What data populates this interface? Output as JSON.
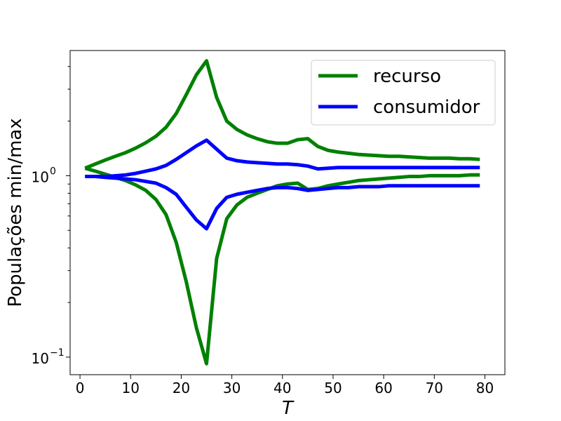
{
  "chart_data": {
    "type": "line",
    "xlabel": "T",
    "ylabel": "Populações min/max",
    "xlim": [
      -1.95,
      83.95
    ],
    "ylim": [
      0.08,
      4.9
    ],
    "yscale": "log",
    "grid": false,
    "legend_position": "top-right",
    "x_ticks": [
      0,
      10,
      20,
      30,
      40,
      50,
      60,
      70,
      80
    ],
    "x_tick_labels": [
      "0",
      "10",
      "20",
      "30",
      "40",
      "50",
      "60",
      "70",
      "80"
    ],
    "y_ticks": [
      {
        "value": 1,
        "base": "10",
        "exp": "0"
      },
      {
        "value": 0.1,
        "base": "10",
        "exp": "−1"
      }
    ],
    "minor_y_ticks": [
      0.2,
      0.3,
      0.4,
      0.5,
      0.6,
      0.7,
      0.8,
      0.9,
      2,
      3,
      4
    ],
    "x": [
      1,
      3,
      5,
      7,
      9,
      11,
      13,
      15,
      17,
      19,
      21,
      23,
      25,
      27,
      29,
      31,
      33,
      35,
      37,
      39,
      41,
      43,
      45,
      47,
      49,
      51,
      53,
      55,
      57,
      59,
      61,
      63,
      65,
      67,
      69,
      71,
      73,
      75,
      77,
      79
    ],
    "series": [
      {
        "name": "recurso",
        "legend": true,
        "color": "#008000",
        "values": [
          1.1,
          1.16,
          1.22,
          1.28,
          1.34,
          1.42,
          1.52,
          1.65,
          1.85,
          2.2,
          2.8,
          3.6,
          4.3,
          2.7,
          2.0,
          1.8,
          1.68,
          1.6,
          1.54,
          1.51,
          1.51,
          1.58,
          1.6,
          1.45,
          1.38,
          1.35,
          1.33,
          1.31,
          1.3,
          1.29,
          1.28,
          1.28,
          1.27,
          1.26,
          1.25,
          1.25,
          1.25,
          1.24,
          1.24,
          1.23
        ]
      },
      {
        "name": "recurso",
        "legend": false,
        "color": "#008000",
        "values": [
          1.1,
          1.06,
          1.02,
          0.98,
          0.94,
          0.89,
          0.83,
          0.74,
          0.61,
          0.43,
          0.26,
          0.145,
          0.092,
          0.35,
          0.58,
          0.69,
          0.76,
          0.8,
          0.84,
          0.88,
          0.9,
          0.91,
          0.84,
          0.85,
          0.88,
          0.9,
          0.92,
          0.94,
          0.95,
          0.96,
          0.97,
          0.98,
          0.99,
          0.99,
          1.0,
          1.0,
          1.0,
          1.0,
          1.01,
          1.01
        ]
      },
      {
        "name": "consumidor",
        "legend": true,
        "color": "#0000ff",
        "values": [
          0.99,
          0.99,
          0.99,
          1.0,
          1.01,
          1.03,
          1.06,
          1.09,
          1.14,
          1.23,
          1.34,
          1.46,
          1.57,
          1.4,
          1.25,
          1.21,
          1.19,
          1.18,
          1.17,
          1.16,
          1.16,
          1.15,
          1.13,
          1.09,
          1.1,
          1.11,
          1.11,
          1.11,
          1.11,
          1.11,
          1.11,
          1.11,
          1.11,
          1.11,
          1.11,
          1.11,
          1.11,
          1.11,
          1.11,
          1.11
        ]
      },
      {
        "name": "consumidor",
        "legend": false,
        "color": "#0000ff",
        "values": [
          0.99,
          0.99,
          0.98,
          0.97,
          0.96,
          0.95,
          0.93,
          0.91,
          0.86,
          0.79,
          0.67,
          0.57,
          0.51,
          0.66,
          0.76,
          0.79,
          0.81,
          0.83,
          0.85,
          0.86,
          0.86,
          0.85,
          0.83,
          0.84,
          0.85,
          0.86,
          0.86,
          0.87,
          0.87,
          0.87,
          0.88,
          0.88,
          0.88,
          0.88,
          0.88,
          0.88,
          0.88,
          0.88,
          0.88,
          0.88
        ]
      }
    ]
  }
}
